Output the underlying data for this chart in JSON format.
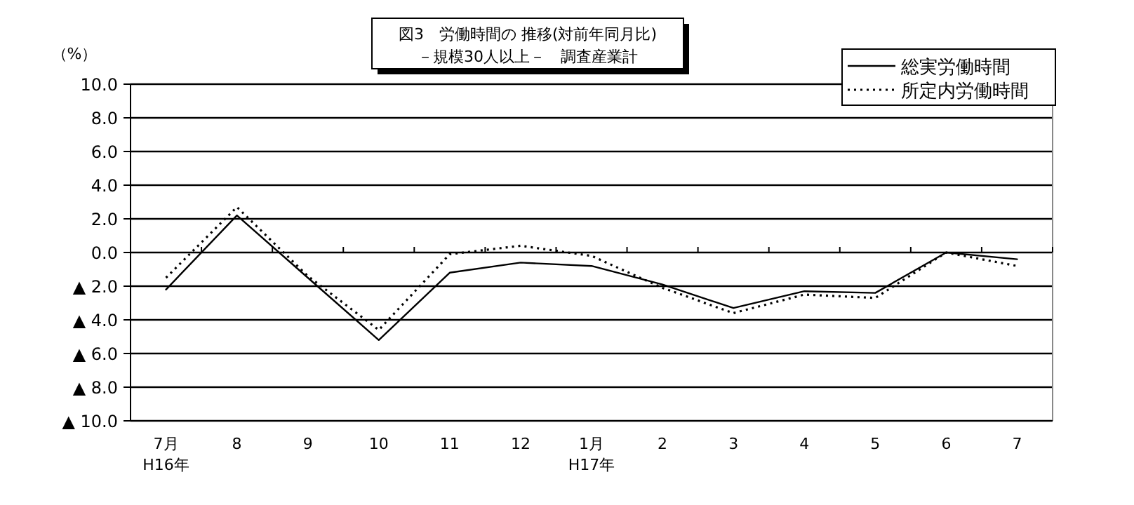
{
  "chart_data": {
    "type": "line",
    "title": "図3　労働時間の 推移(対前年同月比)",
    "subtitle": "－規模30人以上－　調査産業計",
    "ylabel": "（%）",
    "categories": [
      "7月\nH16年",
      "8",
      "9",
      "10",
      "11",
      "12",
      "1月\nH17年",
      "2",
      "3",
      "4",
      "5",
      "6",
      "7"
    ],
    "series": [
      {
        "name": "総実労働時間",
        "color": "#000000",
        "line_style": "solid",
        "values": [
          -2.2,
          2.2,
          -1.5,
          -5.2,
          -1.2,
          -0.6,
          -0.8,
          -1.9,
          -3.3,
          -2.3,
          -2.4,
          0.0,
          -0.4
        ]
      },
      {
        "name": "所定内労働時間",
        "color": "#000000",
        "line_style": "dotted",
        "values": [
          -1.5,
          2.7,
          -1.4,
          -4.6,
          -0.1,
          0.4,
          -0.2,
          -2.1,
          -3.6,
          -2.5,
          -2.7,
          0.0,
          -0.8
        ]
      }
    ],
    "ylim": [
      -10,
      10
    ],
    "yticks": [
      {
        "value": -10,
        "label": "▲ 10.0"
      },
      {
        "value": -8,
        "label": "▲ 8.0"
      },
      {
        "value": -6,
        "label": "▲ 6.0"
      },
      {
        "value": -4,
        "label": "▲ 4.0"
      },
      {
        "value": -2,
        "label": "▲ 2.0"
      },
      {
        "value": 0,
        "label": "0.0"
      },
      {
        "value": 2,
        "label": "2.0"
      },
      {
        "value": 4,
        "label": "4.0"
      },
      {
        "value": 6,
        "label": "6.0"
      },
      {
        "value": 8,
        "label": "8.0"
      },
      {
        "value": 10,
        "label": "10.0"
      }
    ],
    "grid": "y",
    "legend": "top right",
    "marker": "none"
  }
}
